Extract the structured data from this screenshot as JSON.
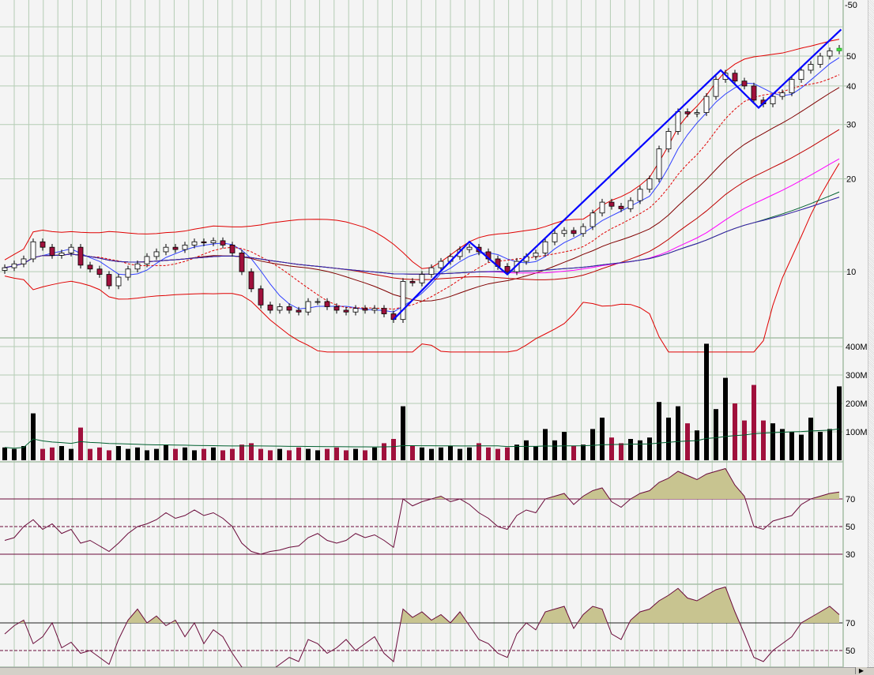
{
  "colors": {
    "background": "#f4f4f4",
    "grid": "#b4ccb4",
    "up_candle": "#000000",
    "down_candle": "#a0103c",
    "last_candle": "#40e040",
    "trend_line": "#0000ff",
    "bollinger": "#e00000",
    "rsi_line": "#6a0a3a",
    "rsi_fill": "#c8c490",
    "ma_colors": [
      "#3040ff",
      "#e00000",
      "#800000",
      "#c00000",
      "#ff00ff",
      "#006030",
      "#ff8000",
      "#2020c0"
    ]
  },
  "icons": {
    "scroll_right": "triangle-right-icon"
  },
  "chart_data": [
    {
      "panel": "price",
      "type": "candlestick",
      "scale": "log",
      "ylim": [
        6.1,
        76
      ],
      "grid": true,
      "top_label": "-50",
      "yticks": [
        {
          "v": 50,
          "label": "50"
        },
        {
          "v": 40,
          "label": "40"
        },
        {
          "v": 30,
          "label": "30"
        },
        {
          "v": 20,
          "label": "20"
        },
        {
          "v": 10,
          "label": "10"
        }
      ],
      "close": [
        10.3,
        10.6,
        11,
        12.5,
        12,
        11.3,
        11.5,
        12,
        10.5,
        10.2,
        9.8,
        9,
        9.6,
        10.2,
        10.6,
        11.2,
        11.6,
        12,
        11.8,
        12.2,
        12.5,
        12.4,
        12.6,
        12.2,
        11.5,
        10,
        8.8,
        7.8,
        7.5,
        7.7,
        7.5,
        7.4,
        8,
        8,
        7.7,
        7.5,
        7.4,
        7.6,
        7.5,
        7.6,
        7.3,
        7.0,
        9.3,
        9.2,
        9.8,
        10.3,
        10.8,
        11.2,
        11.8,
        12,
        11.6,
        11,
        10.4,
        10,
        10.8,
        11.2,
        11.5,
        12.5,
        13.3,
        13.6,
        13.3,
        14,
        15.5,
        16.8,
        16.3,
        16,
        17,
        18.5,
        20,
        25,
        28.5,
        33,
        32.5,
        32.8,
        37,
        42,
        44,
        41.5,
        40,
        36,
        35,
        37,
        38,
        42,
        45,
        47,
        50,
        52,
        53
      ],
      "moving_averages": [
        5,
        10,
        20,
        35,
        50,
        80,
        100,
        150
      ],
      "bollinger": {
        "period": 20,
        "stddev": 2
      },
      "trend_lines": [
        [
          41,
          7.0
        ],
        [
          49,
          12.5
        ],
        [
          53,
          9.8
        ],
        [
          75.5,
          45
        ],
        [
          79.5,
          34
        ],
        [
          88.2,
          61
        ]
      ]
    },
    {
      "panel": "volume",
      "type": "bar",
      "ylim": [
        0,
        420
      ],
      "unit": "M",
      "yticks": [
        {
          "v": 400,
          "label": "400M"
        },
        {
          "v": 300,
          "label": "300M"
        },
        {
          "v": 200,
          "label": "200M"
        },
        {
          "v": 100,
          "label": "100M"
        }
      ],
      "values": [
        45,
        40,
        50,
        165,
        40,
        45,
        50,
        40,
        115,
        40,
        45,
        35,
        50,
        40,
        45,
        35,
        40,
        55,
        40,
        45,
        35,
        40,
        45,
        35,
        40,
        55,
        60,
        40,
        35,
        40,
        35,
        45,
        40,
        35,
        40,
        45,
        35,
        40,
        35,
        45,
        60,
        75,
        190,
        50,
        45,
        40,
        45,
        50,
        40,
        45,
        60,
        45,
        40,
        45,
        55,
        70,
        50,
        110,
        70,
        100,
        50,
        55,
        110,
        150,
        80,
        60,
        75,
        70,
        80,
        205,
        150,
        190,
        130,
        105,
        410,
        180,
        290,
        200,
        140,
        265,
        140,
        130,
        110,
        100,
        90,
        150,
        100,
        110,
        260
      ],
      "average_period": 50
    },
    {
      "panel": "rsi-1",
      "type": "line",
      "ylim": [
        0,
        97
      ],
      "levels": [
        70,
        50,
        30
      ],
      "yticks": [
        {
          "v": 70,
          "label": "70"
        },
        {
          "v": 50,
          "label": "50"
        },
        {
          "v": 30,
          "label": "30"
        }
      ],
      "values": [
        40,
        42,
        50,
        55,
        48,
        52,
        45,
        48,
        38,
        40,
        36,
        32,
        38,
        45,
        50,
        52,
        55,
        60,
        56,
        58,
        62,
        58,
        60,
        56,
        50,
        38,
        32,
        30,
        32,
        33,
        35,
        36,
        42,
        45,
        40,
        38,
        40,
        45,
        42,
        44,
        40,
        35,
        70,
        65,
        68,
        70,
        72,
        68,
        70,
        66,
        60,
        56,
        50,
        48,
        58,
        62,
        60,
        70,
        72,
        74,
        66,
        72,
        76,
        78,
        68,
        64,
        70,
        74,
        76,
        82,
        85,
        90,
        87,
        84,
        88,
        90,
        92,
        80,
        72,
        50,
        48,
        54,
        56,
        58,
        66,
        70,
        72,
        74,
        75
      ]
    },
    {
      "panel": "rsi-2",
      "type": "line",
      "ylim": [
        0,
        98
      ],
      "levels": [
        70,
        50
      ],
      "yticks": [
        {
          "v": 70,
          "label": "70"
        },
        {
          "v": 50,
          "label": "50"
        }
      ],
      "values": [
        62,
        68,
        72,
        55,
        60,
        70,
        52,
        56,
        48,
        50,
        45,
        40,
        58,
        72,
        80,
        70,
        75,
        68,
        72,
        60,
        70,
        55,
        65,
        60,
        48,
        38,
        30,
        32,
        35,
        40,
        45,
        42,
        58,
        55,
        48,
        52,
        58,
        50,
        55,
        60,
        48,
        42,
        80,
        74,
        78,
        72,
        76,
        70,
        78,
        68,
        58,
        55,
        48,
        45,
        62,
        70,
        65,
        78,
        80,
        82,
        66,
        76,
        82,
        80,
        62,
        58,
        72,
        78,
        80,
        86,
        90,
        95,
        88,
        86,
        90,
        94,
        96,
        78,
        62,
        45,
        42,
        50,
        55,
        60,
        70,
        74,
        78,
        82,
        76
      ]
    }
  ]
}
